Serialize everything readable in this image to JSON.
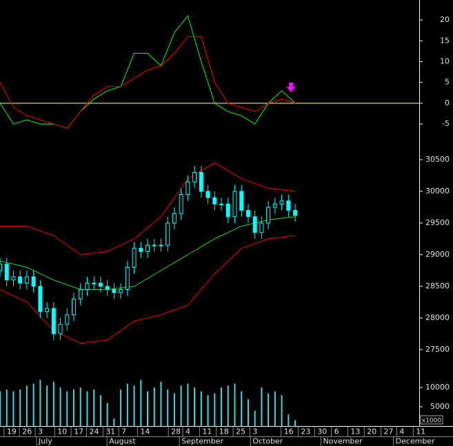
{
  "chart_data": [
    {
      "type": "line",
      "xlim": [
        0,
        125
      ],
      "ylim": [
        -9.1,
        24.8
      ],
      "yticks": [
        -5,
        0,
        5,
        10,
        15,
        20
      ],
      "zero_line_color": "#ffff80",
      "x": [
        0,
        4,
        8,
        12,
        16,
        20,
        24,
        28,
        32,
        36,
        40,
        44,
        48,
        52,
        56,
        60,
        64,
        68,
        72,
        76,
        80,
        84,
        88
      ],
      "series": [
        {
          "color": "#00ff00",
          "values": [
            0,
            -5,
            -4,
            -5,
            -5,
            -6,
            -2,
            1,
            3,
            4,
            12,
            12,
            9,
            17,
            21,
            10,
            0,
            -2,
            -3,
            -5,
            0,
            3,
            0
          ]
        },
        {
          "color": "#ff0000",
          "values": [
            5,
            -1,
            -3,
            -4,
            -5,
            -6,
            -2,
            2,
            4,
            4,
            6,
            8,
            9,
            12,
            16,
            16,
            5,
            0,
            -1,
            -2,
            0,
            1,
            0
          ]
        }
      ]
    },
    {
      "type": "candlestick",
      "xlim": [
        0,
        125
      ],
      "ylim": [
        27260,
        30685
      ],
      "yticks": [
        27500,
        28000,
        28500,
        29000,
        29500,
        30000,
        30500
      ],
      "color": "#00ffff",
      "x": [
        0,
        2,
        4,
        6,
        8,
        10,
        12,
        14,
        16,
        18,
        20,
        22,
        24,
        26,
        28,
        30,
        32,
        34,
        36,
        38,
        40,
        42,
        44,
        46,
        48,
        50,
        52,
        54,
        56,
        58,
        60,
        62,
        64,
        66,
        68,
        70,
        72,
        74,
        76,
        78,
        80,
        82,
        84,
        86,
        88
      ],
      "open": [
        28750,
        28850,
        28600,
        28650,
        28550,
        28650,
        28500,
        28100,
        28150,
        27750,
        27900,
        28050,
        28300,
        28450,
        28550,
        28550,
        28500,
        28450,
        28400,
        28450,
        28800,
        29100,
        29050,
        29150,
        29150,
        29150,
        29500,
        29650,
        29950,
        30150,
        30300,
        30000,
        29900,
        29800,
        29800,
        29600,
        30000,
        29700,
        29600,
        29350,
        29500,
        29750,
        29800,
        29850,
        29700
      ],
      "high": [
        28950,
        28950,
        28750,
        28750,
        28750,
        28750,
        28600,
        28250,
        28250,
        28000,
        28150,
        28400,
        28550,
        28650,
        28650,
        28650,
        28600,
        28550,
        28550,
        28900,
        29200,
        29200,
        29250,
        29250,
        29250,
        29600,
        29750,
        30050,
        30250,
        30400,
        30400,
        30100,
        30000,
        29900,
        29900,
        30100,
        30100,
        29800,
        29700,
        29600,
        29850,
        29900,
        29950,
        29950,
        29800
      ],
      "low": [
        28650,
        28500,
        28500,
        28450,
        28450,
        28400,
        28000,
        28000,
        27650,
        27650,
        27800,
        27950,
        28200,
        28350,
        28450,
        28400,
        28350,
        28300,
        28300,
        28350,
        28700,
        28950,
        28950,
        29050,
        29050,
        29050,
        29400,
        29550,
        29850,
        30050,
        29900,
        29800,
        29700,
        29700,
        29500,
        29500,
        29600,
        29500,
        29250,
        29250,
        29400,
        29650,
        29700,
        29600,
        29520
      ],
      "close": [
        28850,
        28600,
        28650,
        28550,
        28650,
        28500,
        28100,
        28150,
        27750,
        27900,
        28050,
        28300,
        28450,
        28550,
        28550,
        28500,
        28450,
        28400,
        28450,
        28800,
        29100,
        29050,
        29150,
        29150,
        29150,
        29500,
        29650,
        29950,
        30150,
        30300,
        30000,
        29900,
        29800,
        29800,
        29600,
        30000,
        29700,
        29600,
        29350,
        29500,
        29750,
        29800,
        29850,
        29700,
        29620
      ],
      "bands": [
        {
          "color": "#ff0000",
          "x": [
            0,
            8,
            16,
            24,
            32,
            40,
            48,
            56,
            64,
            72,
            80,
            88
          ],
          "values": [
            29450,
            29450,
            29300,
            29000,
            29050,
            29250,
            29600,
            30200,
            30450,
            30200,
            30050,
            30000
          ]
        },
        {
          "color": "#22dd22",
          "x": [
            0,
            8,
            16,
            24,
            32,
            40,
            48,
            56,
            64,
            72,
            80,
            88
          ],
          "values": [
            28900,
            28800,
            28600,
            28450,
            28450,
            28500,
            28750,
            29000,
            29250,
            29450,
            29550,
            29600
          ]
        },
        {
          "color": "#ff0000",
          "x": [
            0,
            8,
            16,
            24,
            32,
            40,
            48,
            56,
            64,
            72,
            80,
            88
          ],
          "values": [
            28450,
            28250,
            27800,
            27600,
            27650,
            27950,
            28050,
            28200,
            28700,
            29100,
            29250,
            29300
          ]
        }
      ]
    },
    {
      "type": "bar",
      "xlim": [
        0,
        125
      ],
      "ylim": [
        0,
        14100
      ],
      "yticks": [
        5000,
        10000
      ],
      "color": "#40d8e0",
      "unit_label": "x1000",
      "x": [
        0,
        2,
        4,
        6,
        8,
        10,
        12,
        14,
        16,
        18,
        20,
        22,
        24,
        26,
        28,
        30,
        32,
        34,
        36,
        38,
        40,
        42,
        44,
        46,
        48,
        50,
        52,
        54,
        56,
        58,
        60,
        62,
        64,
        66,
        68,
        70,
        72,
        74,
        76,
        78,
        80,
        82,
        84,
        86,
        88
      ],
      "values": [
        9000,
        9500,
        9000,
        9500,
        10500,
        11000,
        12000,
        10500,
        11500,
        10000,
        9000,
        9500,
        10000,
        9000,
        9500,
        8000,
        6000,
        2000,
        9500,
        11000,
        10500,
        12000,
        9000,
        10000,
        11500,
        9500,
        8500,
        10500,
        11000,
        10000,
        9000,
        8000,
        8500,
        10000,
        10500,
        11000,
        9000,
        7000,
        4000,
        10000,
        8500,
        9000,
        8000,
        3000,
        1500
      ],
      "xticks": [
        {
          "value": 1.2,
          "label": "19"
        },
        {
          "value": 5.8,
          "label": "26"
        },
        {
          "value": 10.5,
          "label": "3"
        },
        {
          "value": 16.3,
          "label": "10"
        },
        {
          "value": 21.2,
          "label": "17"
        },
        {
          "value": 25.8,
          "label": "24"
        },
        {
          "value": 30.7,
          "label": "31"
        },
        {
          "value": 35.4,
          "label": "7"
        },
        {
          "value": 41,
          "label": "14"
        },
        {
          "value": 50.2,
          "label": "28"
        },
        {
          "value": 54.5,
          "label": "4"
        },
        {
          "value": 59.5,
          "label": "11"
        },
        {
          "value": 64.5,
          "label": "18"
        },
        {
          "value": 69.5,
          "label": "25"
        },
        {
          "value": 74.5,
          "label": "3"
        },
        {
          "value": 83.8,
          "label": "16"
        },
        {
          "value": 88.9,
          "label": "23"
        },
        {
          "value": 93.8,
          "label": "30"
        },
        {
          "value": 98.8,
          "label": "6"
        },
        {
          "value": 103.7,
          "label": "13"
        },
        {
          "value": 108.6,
          "label": "20"
        },
        {
          "value": 113.6,
          "label": "27"
        },
        {
          "value": 118.3,
          "label": "4"
        },
        {
          "value": 123.2,
          "label": "11"
        }
      ],
      "month_ticks": [
        {
          "value": 10.9,
          "label": "July"
        },
        {
          "value": 31.9,
          "label": "August"
        },
        {
          "value": 53.5,
          "label": "September"
        },
        {
          "value": 74.7,
          "label": "October"
        },
        {
          "value": 95.7,
          "label": "November"
        },
        {
          "value": 117.3,
          "label": "December"
        }
      ]
    }
  ]
}
